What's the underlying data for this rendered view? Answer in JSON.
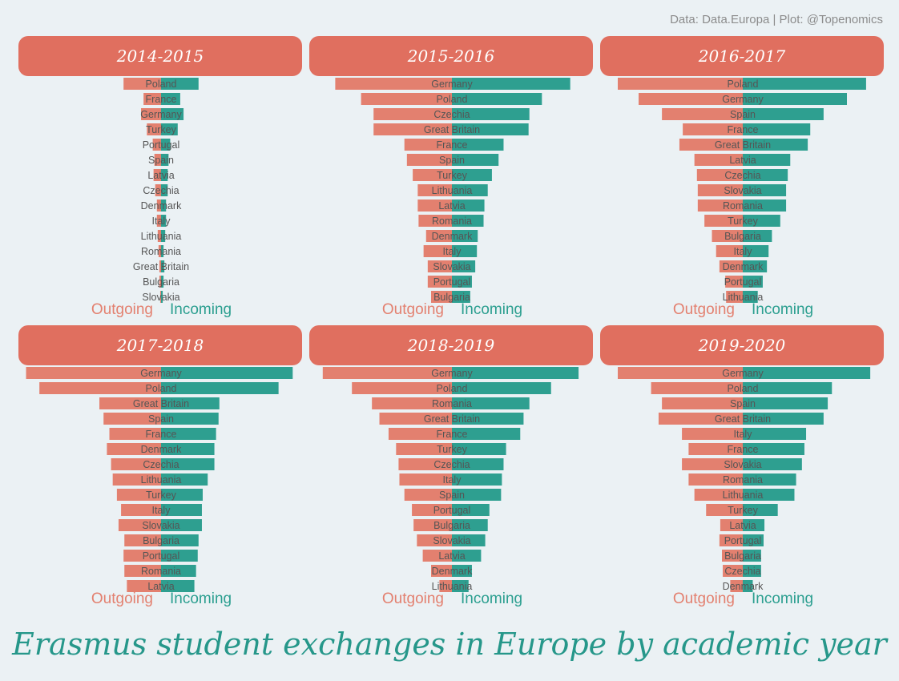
{
  "credit": "Data: Data.Europa | Plot: @Topenomics",
  "title": "Erasmus student exchanges in Europe by academic year",
  "legend": {
    "outgoing": "Outgoing",
    "incoming": "Incoming"
  },
  "colors": {
    "header": "#e06f5f",
    "outgoing": "#e3806f",
    "incoming": "#2e9f90",
    "title": "#26978a",
    "label": "#555555"
  },
  "chart_data": [
    {
      "type": "bar",
      "title": "2014-2015",
      "categories": [
        "Poland",
        "France",
        "Germany",
        "Turkey",
        "Portugal",
        "Spain",
        "Latvia",
        "Czechia",
        "Denmark",
        "Italy",
        "Lithuania",
        "Romania",
        "Great Britain",
        "Bulgaria",
        "Slovakia"
      ],
      "series": [
        {
          "name": "Outgoing",
          "values": [
            45,
            21,
            24,
            17,
            10,
            8,
            9,
            7,
            5,
            5,
            4,
            3,
            2,
            2,
            1
          ]
        },
        {
          "name": "Incoming",
          "values": [
            45,
            23,
            27,
            20,
            11,
            9,
            8,
            8,
            6,
            6,
            5,
            3,
            4,
            3,
            2
          ]
        }
      ]
    },
    {
      "type": "bar",
      "title": "2015-2016",
      "categories": [
        "Germany",
        "Poland",
        "Czechia",
        "Great Britain",
        "France",
        "Spain",
        "Turkey",
        "Lithuania",
        "Latvia",
        "Romania",
        "Denmark",
        "Italy",
        "Slovakia",
        "Portugal",
        "Bulgaria"
      ],
      "series": [
        {
          "name": "Outgoing",
          "values": [
            140,
            109,
            94,
            94,
            57,
            54,
            47,
            41,
            41,
            40,
            31,
            34,
            29,
            29,
            25
          ]
        },
        {
          "name": "Incoming",
          "values": [
            142,
            108,
            93,
            92,
            62,
            56,
            48,
            43,
            39,
            38,
            31,
            30,
            28,
            24,
            22
          ]
        }
      ]
    },
    {
      "type": "bar",
      "title": "2016-2017",
      "categories": [
        "Poland",
        "Germany",
        "Spain",
        "France",
        "Great Britain",
        "Latvia",
        "Czechia",
        "Slovakia",
        "Romania",
        "Turkey",
        "Bulgaria",
        "Italy",
        "Denmark",
        "Portugal",
        "Lithuania"
      ],
      "series": [
        {
          "name": "Outgoing",
          "values": [
            150,
            125,
            97,
            72,
            76,
            58,
            55,
            54,
            54,
            46,
            37,
            32,
            28,
            21,
            20
          ]
        },
        {
          "name": "Incoming",
          "values": [
            148,
            125,
            97,
            81,
            78,
            57,
            54,
            52,
            52,
            45,
            35,
            31,
            29,
            24,
            18
          ]
        }
      ]
    },
    {
      "type": "bar",
      "title": "2017-2018",
      "categories": [
        "Germany",
        "Poland",
        "Great Britain",
        "Spain",
        "France",
        "Denmark",
        "Czechia",
        "Lithuania",
        "Turkey",
        "Italy",
        "Slovakia",
        "Bulgaria",
        "Portugal",
        "Romania",
        "Latvia"
      ],
      "series": [
        {
          "name": "Outgoing",
          "values": [
            162,
            146,
            74,
            69,
            62,
            65,
            60,
            58,
            53,
            48,
            51,
            44,
            45,
            44,
            41
          ]
        },
        {
          "name": "Incoming",
          "values": [
            158,
            141,
            70,
            69,
            66,
            64,
            64,
            56,
            50,
            49,
            49,
            45,
            44,
            42,
            40
          ]
        }
      ]
    },
    {
      "type": "bar",
      "title": "2018-2019",
      "categories": [
        "Germany",
        "Poland",
        "Romania",
        "Great Britain",
        "France",
        "Turkey",
        "Czechia",
        "Italy",
        "Spain",
        "Portugal",
        "Bulgaria",
        "Slovakia",
        "Latvia",
        "Denmark",
        "Lithuania"
      ],
      "series": [
        {
          "name": "Outgoing",
          "values": [
            155,
            120,
            96,
            87,
            76,
            67,
            64,
            63,
            57,
            48,
            46,
            42,
            35,
            25,
            15
          ]
        },
        {
          "name": "Incoming",
          "values": [
            152,
            119,
            93,
            86,
            82,
            65,
            62,
            60,
            59,
            45,
            43,
            40,
            35,
            24,
            20
          ]
        }
      ]
    },
    {
      "type": "bar",
      "title": "2019-2020",
      "categories": [
        "Germany",
        "Poland",
        "Spain",
        "Great Britain",
        "Italy",
        "France",
        "Slovakia",
        "Romania",
        "Lithuania",
        "Turkey",
        "Latvia",
        "Portugal",
        "Bulgaria",
        "Czechia",
        "Denmark"
      ],
      "series": [
        {
          "name": "Outgoing",
          "values": [
            150,
            110,
            97,
            101,
            73,
            65,
            73,
            65,
            58,
            44,
            27,
            28,
            25,
            24,
            15
          ]
        },
        {
          "name": "Incoming",
          "values": [
            153,
            107,
            102,
            97,
            76,
            74,
            71,
            64,
            62,
            42,
            26,
            25,
            22,
            22,
            12
          ]
        }
      ]
    }
  ]
}
